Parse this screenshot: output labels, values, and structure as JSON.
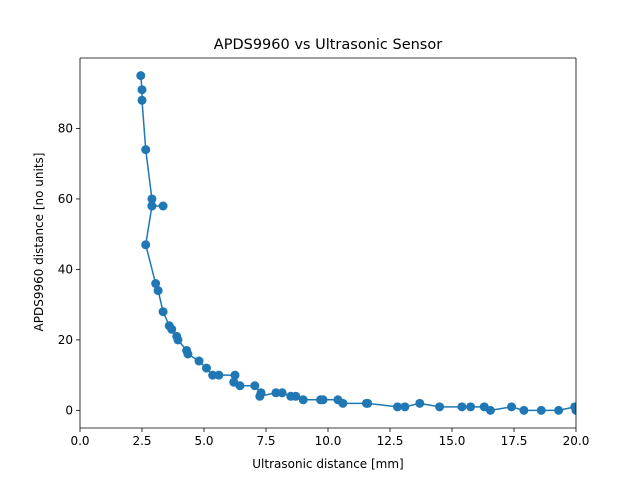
{
  "chart_data": {
    "type": "line",
    "title": "APDS9960 vs Ultrasonic Sensor",
    "xlabel": "Ultrasonic distance [mm]",
    "ylabel": "APDS9960 distance [no units]",
    "xlim": [
      0,
      20
    ],
    "ylim": [
      -5,
      100
    ],
    "xticks": [
      0,
      2.5,
      5,
      7.5,
      10,
      12.5,
      15,
      17.5,
      20
    ],
    "xtick_labels": [
      "0.0",
      "2.5",
      "5.0",
      "7.5",
      "10.0",
      "12.5",
      "15.0",
      "17.5",
      "20.0"
    ],
    "yticks": [
      0,
      20,
      40,
      60,
      80
    ],
    "ytick_labels": [
      "0",
      "20",
      "40",
      "60",
      "80"
    ],
    "grid": false,
    "marker": "circle",
    "color": "#1f77b4",
    "series": [
      {
        "x": [
          2.45,
          2.5,
          2.5,
          2.65,
          2.9,
          2.9,
          3.35,
          2.9,
          2.65,
          3.05,
          3.15,
          3.35,
          3.6,
          3.7,
          3.9,
          3.95,
          4.3,
          4.35,
          4.8,
          5.1,
          5.35,
          5.6,
          6.25,
          6.2,
          6.45,
          7.05,
          7.3,
          7.25,
          7.9,
          8.15,
          8.5,
          8.7,
          9.0,
          9.7,
          9.8,
          10.4,
          10.6,
          11.55,
          11.6,
          12.8,
          13.1,
          13.7,
          14.5,
          15.4,
          15.75,
          16.3,
          16.55,
          17.4,
          17.9,
          18.6,
          19.3,
          19.95,
          20.0
        ],
        "y": [
          95,
          91,
          88,
          74,
          60,
          58,
          58,
          58,
          47,
          36,
          34,
          28,
          24,
          23,
          21,
          20,
          17,
          16,
          14,
          12,
          10,
          10,
          10,
          8,
          7,
          7,
          5,
          4,
          5,
          5,
          4,
          4,
          3,
          3,
          3,
          3,
          2,
          2,
          2,
          1,
          1,
          2,
          1,
          1,
          1,
          1,
          0,
          1,
          0,
          0,
          0,
          1,
          0
        ]
      }
    ]
  }
}
